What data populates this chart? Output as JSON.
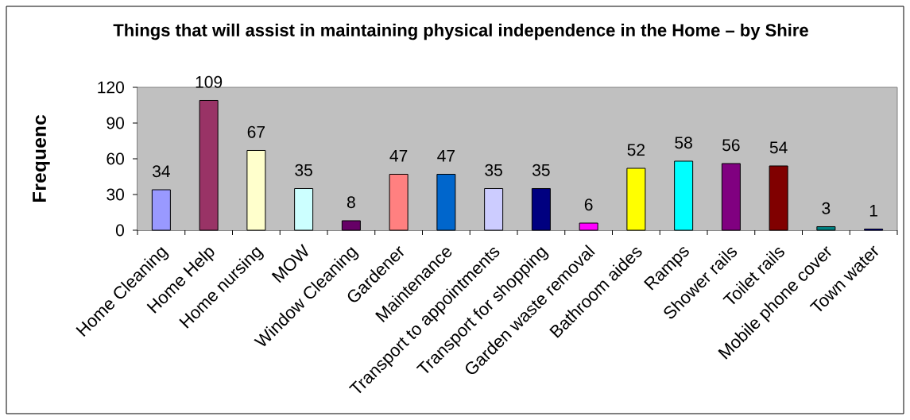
{
  "chart_data": {
    "type": "bar",
    "title": "Things that will assist in maintaining physical independence in the Home – by Shire",
    "ylabel": "Frequenc",
    "categories": [
      "Home Cleaning",
      "Home Help",
      "Home nursing",
      "MOW",
      "Window Cleaning",
      "Gardener",
      "Maintenance",
      "Transport to appointments",
      "Transport for shopping",
      "Garden waste removal",
      "Bathroom aides",
      "Ramps",
      "Shower rails",
      "Toilet rails",
      "Mobile phone cover",
      "Town water"
    ],
    "values": [
      34,
      109,
      67,
      35,
      8,
      47,
      47,
      35,
      35,
      6,
      52,
      58,
      56,
      54,
      3,
      1
    ],
    "colors": [
      "#9999ff",
      "#993366",
      "#ffffcc",
      "#ccffff",
      "#660066",
      "#ff8080",
      "#0066cc",
      "#ccccff",
      "#000080",
      "#ff00ff",
      "#ffff00",
      "#00ffff",
      "#800080",
      "#800000",
      "#008080",
      "#0000ff"
    ],
    "ylim": [
      0,
      120
    ],
    "yticks": [
      0,
      30,
      60,
      90,
      120
    ],
    "data_labels": true
  }
}
